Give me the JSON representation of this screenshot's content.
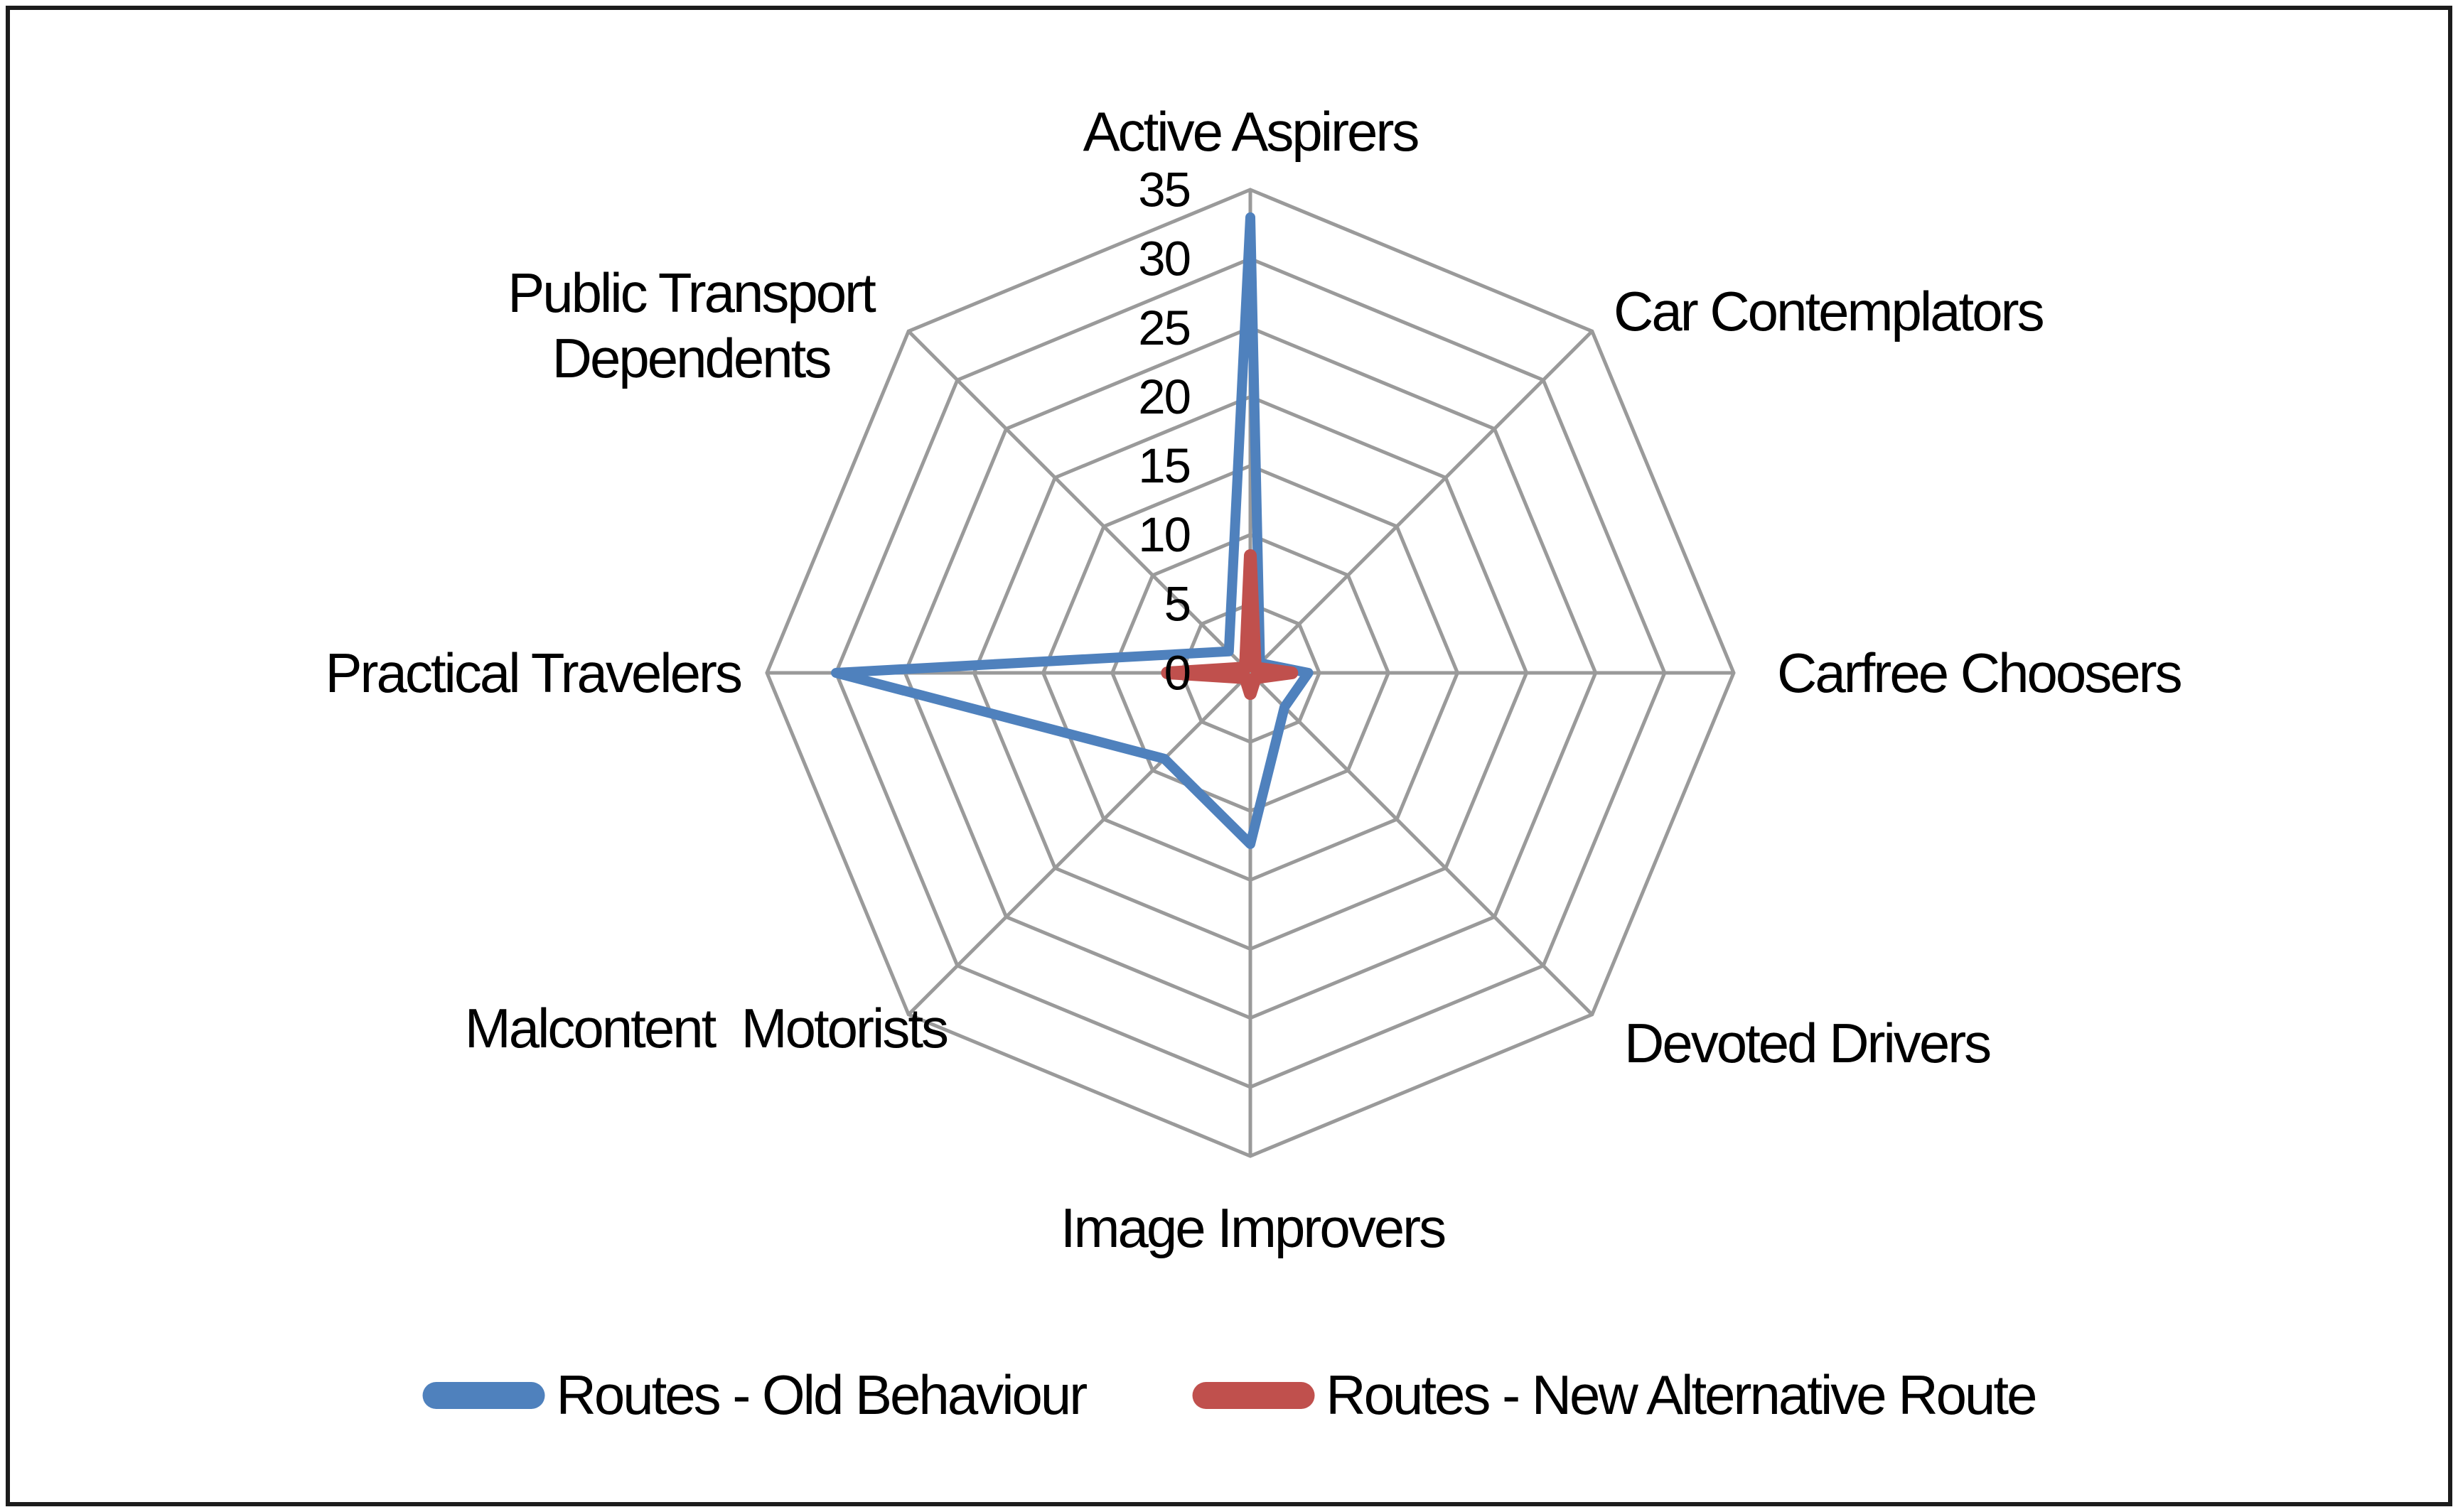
{
  "chart_data": {
    "type": "radar",
    "axis": {
      "min": 0,
      "max": 35,
      "step": 5,
      "tick_labels": [
        "0",
        "5",
        "10",
        "15",
        "20",
        "25",
        "30",
        "35"
      ]
    },
    "grid": {
      "color": "#9a9a9a",
      "rings": 7,
      "shape": "octagon",
      "gridlines_on": true
    },
    "categories": [
      {
        "name": "Active Aspirers",
        "lines": [
          "Active Aspirers"
        ]
      },
      {
        "name": "Car Contemplators",
        "lines": [
          "Car Contemplators"
        ]
      },
      {
        "name": "Carfree Choosers",
        "lines": [
          "Carfree Choosers"
        ]
      },
      {
        "name": "Devoted Drivers",
        "lines": [
          "Devoted Drivers"
        ]
      },
      {
        "name": "Image Improvers",
        "lines": [
          "Image Improvers"
        ]
      },
      {
        "name": "Malcontent  Motorists",
        "lines": [
          "Malcontent  Motorists"
        ]
      },
      {
        "name": "Practical Travelers",
        "lines": [
          "Practical Travelers"
        ]
      },
      {
        "name": "Public Transport Dependents",
        "lines": [
          "Public Transport",
          "Dependents"
        ]
      }
    ],
    "series": [
      {
        "name": "Routes - Old Behaviour",
        "color": "#4F81BD",
        "stroke_width": 14,
        "values": [
          33,
          1,
          4.2,
          3.5,
          12.4,
          8.8,
          30,
          2.2
        ]
      },
      {
        "name": "Routes - New Alternative Route",
        "color": "#C0504D",
        "stroke_width": 18,
        "values": [
          8.5,
          0.5,
          3,
          0.5,
          1.5,
          0.5,
          6,
          0.5
        ]
      }
    ],
    "legend_position": "bottom"
  },
  "legend": {
    "items": [
      {
        "label": "Routes - Old Behaviour",
        "color": "#4F81BD"
      },
      {
        "label": "Routes - New Alternative Route",
        "color": "#C0504D"
      }
    ]
  }
}
